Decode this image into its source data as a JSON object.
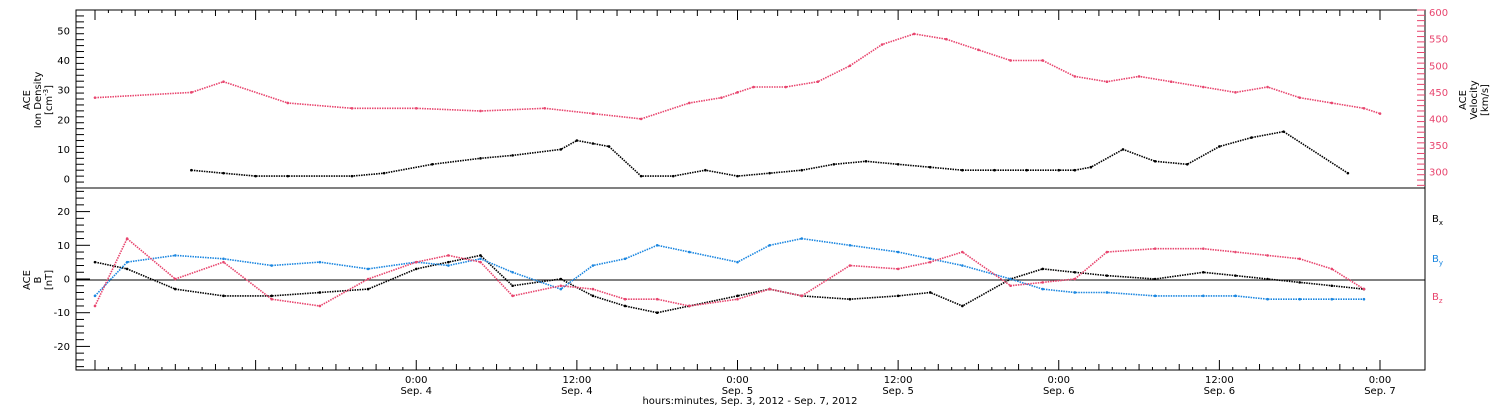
{
  "chart_data": [
    {
      "type": "line",
      "panel": "top",
      "x_range_days": [
        3.0,
        7.0
      ],
      "ylabel_left": [
        "ACE",
        "Ion Density",
        "[cm^-3]"
      ],
      "ylabel_right": [
        "ACE",
        "Velocity",
        "[km/s]"
      ],
      "left_axis": {
        "ylim": [
          -3,
          57
        ],
        "ticks": [
          0,
          10,
          20,
          30,
          40,
          50
        ],
        "tick_labels": [
          "0",
          "10",
          "20",
          "30",
          "40",
          "50"
        ]
      },
      "right_axis": {
        "ylim": [
          270,
          605
        ],
        "ticks": [
          300,
          350,
          400,
          450,
          500,
          550,
          600
        ],
        "tick_labels": [
          "300",
          "350",
          "400",
          "450",
          "500",
          "550",
          "600"
        ],
        "color": "#e8456e"
      },
      "series": [
        {
          "name": "",
          "axis": "left",
          "color": "#000000",
          "x": [
            3.3,
            3.4,
            3.5,
            3.6,
            3.8,
            3.9,
            4.05,
            4.2,
            4.3,
            4.45,
            4.5,
            4.55,
            4.6,
            4.7,
            4.8,
            4.9,
            5.0,
            5.1,
            5.2,
            5.3,
            5.4,
            5.5,
            5.6,
            5.7,
            5.8,
            5.9,
            6.0,
            6.05,
            6.1,
            6.2,
            6.3,
            6.4,
            6.5,
            6.6,
            6.7,
            6.9
          ],
          "values": [
            3,
            2,
            1,
            1,
            1,
            2,
            5,
            7,
            8,
            10,
            13,
            12,
            11,
            1,
            1,
            3,
            1,
            2,
            3,
            5,
            6,
            5,
            4,
            3,
            3,
            3,
            3,
            3,
            4,
            10,
            6,
            5,
            11,
            14,
            16,
            2
          ]
        },
        {
          "name": "",
          "axis": "right",
          "color": "#e8456e",
          "x": [
            3.0,
            3.3,
            3.4,
            3.6,
            3.8,
            4.0,
            4.2,
            4.4,
            4.55,
            4.7,
            4.85,
            4.95,
            5.0,
            5.05,
            5.15,
            5.25,
            5.35,
            5.45,
            5.55,
            5.65,
            5.75,
            5.85,
            5.95,
            6.05,
            6.15,
            6.25,
            6.35,
            6.45,
            6.55,
            6.65,
            6.75,
            6.85,
            6.95,
            7.0
          ],
          "values": [
            440,
            450,
            470,
            430,
            420,
            420,
            415,
            420,
            410,
            400,
            430,
            440,
            450,
            460,
            460,
            470,
            500,
            540,
            560,
            550,
            530,
            510,
            510,
            480,
            470,
            480,
            470,
            460,
            450,
            460,
            440,
            430,
            420,
            410
          ]
        }
      ]
    },
    {
      "type": "line",
      "panel": "bottom",
      "x_range_days": [
        3.0,
        7.0
      ],
      "ylabel_left": [
        "ACE",
        "B",
        "[nT]"
      ],
      "ylim": [
        -27,
        27
      ],
      "ticks": [
        -20,
        -10,
        0,
        10,
        20
      ],
      "tick_labels": [
        "-20",
        "-10",
        "0",
        "10",
        "20"
      ],
      "legend": {
        "placement": "right"
      },
      "series": [
        {
          "name": "Bx",
          "color": "#000000",
          "x": [
            3.0,
            3.1,
            3.25,
            3.4,
            3.55,
            3.7,
            3.85,
            4.0,
            4.1,
            4.2,
            4.3,
            4.45,
            4.55,
            4.65,
            4.75,
            4.85,
            5.0,
            5.1,
            5.2,
            5.35,
            5.5,
            5.6,
            5.7,
            5.85,
            5.95,
            6.05,
            6.15,
            6.3,
            6.45,
            6.55,
            6.65,
            6.75,
            6.85,
            6.95
          ],
          "values": [
            5,
            3,
            -3,
            -5,
            -5,
            -4,
            -3,
            3,
            5,
            7,
            -2,
            0,
            -5,
            -8,
            -10,
            -8,
            -5,
            -3,
            -5,
            -6,
            -5,
            -4,
            -8,
            0,
            3,
            2,
            1,
            0,
            2,
            1,
            0,
            -1,
            -2,
            -3
          ]
        },
        {
          "name": "By",
          "color": "#1a86e0",
          "x": [
            3.0,
            3.1,
            3.25,
            3.4,
            3.55,
            3.7,
            3.85,
            4.0,
            4.1,
            4.2,
            4.3,
            4.45,
            4.55,
            4.65,
            4.75,
            4.85,
            5.0,
            5.1,
            5.2,
            5.35,
            5.5,
            5.6,
            5.7,
            5.85,
            5.95,
            6.05,
            6.15,
            6.3,
            6.45,
            6.55,
            6.65,
            6.75,
            6.85,
            6.95
          ],
          "values": [
            -5,
            5,
            7,
            6,
            4,
            5,
            3,
            5,
            4,
            6,
            2,
            -3,
            4,
            6,
            10,
            8,
            5,
            10,
            12,
            10,
            8,
            6,
            4,
            0,
            -3,
            -4,
            -4,
            -5,
            -5,
            -5,
            -6,
            -6,
            -6,
            -6
          ]
        },
        {
          "name": "Bz",
          "color": "#e8456e",
          "x": [
            3.0,
            3.1,
            3.25,
            3.4,
            3.55,
            3.7,
            3.85,
            4.0,
            4.1,
            4.2,
            4.3,
            4.45,
            4.55,
            4.65,
            4.75,
            4.85,
            5.0,
            5.1,
            5.2,
            5.35,
            5.5,
            5.6,
            5.7,
            5.85,
            5.95,
            6.05,
            6.15,
            6.3,
            6.45,
            6.55,
            6.65,
            6.75,
            6.85,
            6.95
          ],
          "values": [
            -8,
            12,
            0,
            5,
            -6,
            -8,
            0,
            5,
            7,
            5,
            -5,
            -2,
            -3,
            -6,
            -6,
            -8,
            -6,
            -3,
            -5,
            4,
            3,
            5,
            8,
            -2,
            -1,
            0,
            8,
            9,
            9,
            8,
            7,
            6,
            3,
            -3
          ]
        }
      ]
    }
  ],
  "x_axis": {
    "ticks_days": [
      4.0,
      4.5,
      5.0,
      5.5,
      6.0,
      6.5,
      7.0
    ],
    "tick_labels_time": [
      "0:00",
      "12:00",
      "0:00",
      "12:00",
      "0:00",
      "12:00",
      "0:00"
    ],
    "tick_labels_date": [
      "Sep. 4",
      "Sep. 4",
      "Sep. 5",
      "Sep. 5",
      "Sep. 6",
      "Sep. 6",
      "Sep. 7"
    ],
    "xlabel": "hours:minutes, Sep. 3, 2012 - Sep. 7, 2012"
  },
  "labels": {
    "top_left": {
      "l1": "ACE",
      "l2": "Ion Density",
      "l3": "[cm",
      "sup": "-3",
      "l3_close": "]"
    },
    "top_right": {
      "l1": "ACE",
      "l2": "Velocity",
      "l3": "[km/s]"
    },
    "bottom_left": {
      "l1": "ACE",
      "l2": "B",
      "l3": "[nT]"
    },
    "legend": [
      {
        "base": "B",
        "sub": "x",
        "color": "#000000"
      },
      {
        "base": "B",
        "sub": "y",
        "color": "#1a86e0"
      },
      {
        "base": "B",
        "sub": "z",
        "color": "#e8456e"
      }
    ]
  }
}
